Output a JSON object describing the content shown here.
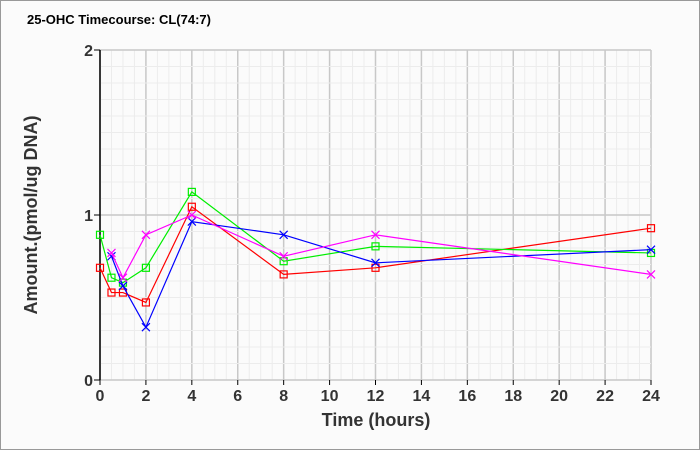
{
  "chart_data": {
    "type": "line",
    "title": "25-OHC Timecourse: CL(74:7)",
    "xlabel": "Time (hours)",
    "ylabel": "Amount.(pmol/ug DNA)",
    "xlim": [
      0,
      24
    ],
    "ylim": [
      0,
      2
    ],
    "xticks": [
      "0",
      "2",
      "4",
      "6",
      "8",
      "10",
      "12",
      "14",
      "16",
      "18",
      "20",
      "22",
      "24"
    ],
    "yticks": [
      "0",
      "1",
      "2"
    ],
    "grid": true,
    "series": [
      {
        "name": "red",
        "color": "#ff0000",
        "marker": "square",
        "x": [
          0,
          0.5,
          1,
          2,
          4,
          8,
          12,
          24
        ],
        "y": [
          0.68,
          0.53,
          0.53,
          0.47,
          1.05,
          0.64,
          0.68,
          0.92
        ]
      },
      {
        "name": "green",
        "color": "#00ee00",
        "marker": "square",
        "x": [
          0,
          0.5,
          1,
          2,
          4,
          8,
          12,
          24
        ],
        "y": [
          0.88,
          0.62,
          0.59,
          0.68,
          1.14,
          0.72,
          0.81,
          0.77
        ]
      },
      {
        "name": "blue",
        "color": "#0000ff",
        "marker": "x",
        "x": [
          0.5,
          1,
          2,
          4,
          8,
          12,
          24
        ],
        "y": [
          0.75,
          0.57,
          0.32,
          0.96,
          0.88,
          0.71,
          0.79
        ]
      },
      {
        "name": "magenta",
        "color": "#ff00ff",
        "marker": "x",
        "x": [
          0.5,
          1,
          2,
          4,
          8,
          12,
          24
        ],
        "y": [
          0.77,
          0.62,
          0.88,
          1.0,
          0.75,
          0.88,
          0.64
        ]
      }
    ]
  }
}
